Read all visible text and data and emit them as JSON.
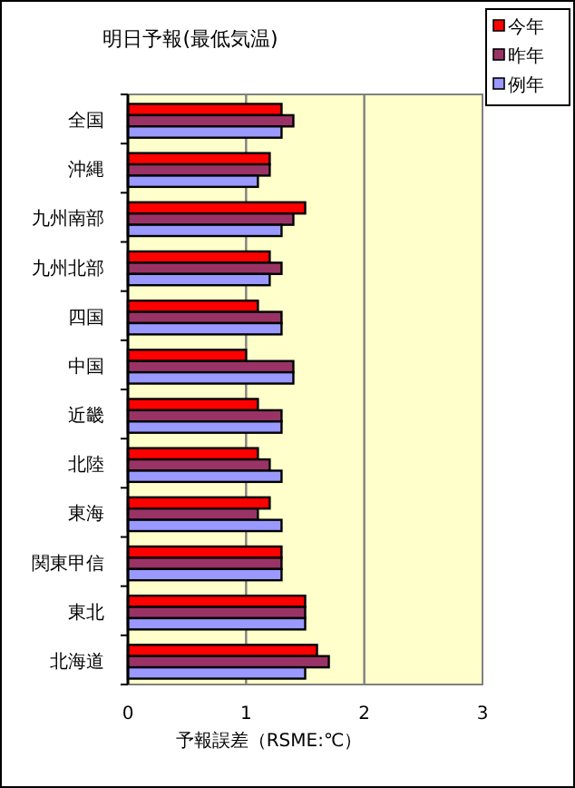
{
  "chart_data": {
    "type": "bar",
    "orientation": "horizontal",
    "title": "明日予報(最低気温)",
    "xlabel": "予報誤差（RSME:℃）",
    "categories": [
      "全国",
      "沖縄",
      "九州南部",
      "九州北部",
      "四国",
      "中国",
      "近畿",
      "北陸",
      "東海",
      "関東甲信",
      "東北",
      "北海道"
    ],
    "series": [
      {
        "name": "今年",
        "color": "#ff0000",
        "values": [
          1.3,
          1.2,
          1.5,
          1.2,
          1.1,
          1.0,
          1.1,
          1.1,
          1.2,
          1.3,
          1.5,
          1.6
        ]
      },
      {
        "name": "昨年",
        "color": "#993366",
        "values": [
          1.4,
          1.2,
          1.4,
          1.3,
          1.3,
          1.4,
          1.3,
          1.2,
          1.1,
          1.3,
          1.5,
          1.7
        ]
      },
      {
        "name": "例年",
        "color": "#9999ff",
        "values": [
          1.3,
          1.1,
          1.3,
          1.2,
          1.3,
          1.4,
          1.3,
          1.3,
          1.3,
          1.3,
          1.5,
          1.5
        ]
      }
    ],
    "xlim": [
      0,
      3
    ],
    "xticks": [
      0,
      1,
      2,
      3
    ],
    "grid": "x",
    "legend": "top right"
  }
}
